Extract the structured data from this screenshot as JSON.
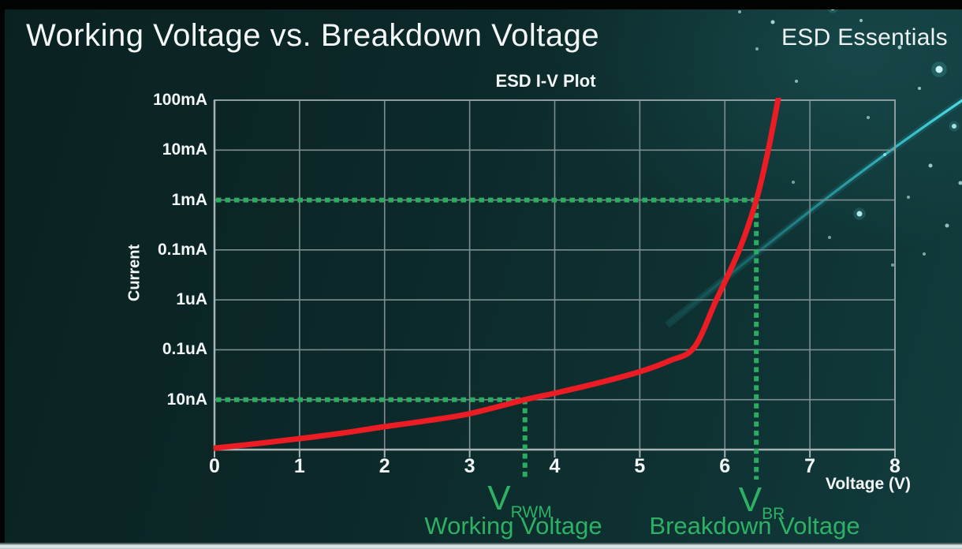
{
  "slide": {
    "title": "Working Voltage vs. Breakdown Voltage",
    "brand": "ESD Essentials"
  },
  "chart": {
    "title": "ESD I-V Plot",
    "x_axis_label": "Voltage (V)",
    "y_axis_label": "Current",
    "x_ticks": [
      "0",
      "1",
      "2",
      "3",
      "4",
      "5",
      "6",
      "7",
      "8"
    ],
    "y_ticks": [
      "100mA",
      "10mA",
      "1mA",
      "0.1mA",
      "1uA",
      "0.1uA",
      "10nA"
    ]
  },
  "annotations": {
    "working": {
      "symbol": "V",
      "subscript": "RWM",
      "caption": "Working Voltage"
    },
    "breakdown": {
      "symbol": "V",
      "subscript": "BR",
      "caption": "Breakdown Voltage"
    }
  },
  "colors": {
    "background_teal": "#0d2b2b",
    "curve_red": "#ec1c24",
    "guide_green": "#2bac60",
    "label_green": "#2db165",
    "grid_gray": "#7e8e90",
    "axis_gray": "#a7b3b4",
    "text_white": "#f2f6f6",
    "swoosh_cyan": "#3fd9e6"
  },
  "chart_data": {
    "type": "line",
    "title": "ESD I-V Plot",
    "xlabel": "Voltage (V)",
    "ylabel": "Current",
    "x_range": [
      0,
      8
    ],
    "x_ticks": [
      0,
      1,
      2,
      3,
      4,
      5,
      6,
      7,
      8
    ],
    "y_scale": "log-decades",
    "y_tick_labels_top_to_bottom": [
      "100mA",
      "10mA",
      "1mA",
      "0.1mA",
      "1uA",
      "0.1uA",
      "10nA"
    ],
    "y_decade_level_map": {
      "axis_bottom": 0,
      "10nA": 1,
      "0.1uA": 2,
      "1uA": 3,
      "0.1mA": 4,
      "1mA": 5,
      "10mA": 6,
      "100mA": 7
    },
    "grid": true,
    "legend": "none",
    "series": [
      {
        "name": "ESD device I-V curve",
        "color": "#ec1c24",
        "points_voltage_vs_decade_level": [
          [
            0,
            0.03
          ],
          [
            0.5,
            0.12
          ],
          [
            1,
            0.22
          ],
          [
            1.5,
            0.33
          ],
          [
            2,
            0.46
          ],
          [
            2.5,
            0.58
          ],
          [
            3,
            0.72
          ],
          [
            3.65,
            1.0
          ],
          [
            4,
            1.13
          ],
          [
            4.5,
            1.33
          ],
          [
            5,
            1.56
          ],
          [
            5.35,
            1.78
          ],
          [
            5.64,
            2.05
          ],
          [
            5.9,
            3.0
          ],
          [
            6.17,
            4.0
          ],
          [
            6.37,
            5.0
          ],
          [
            6.51,
            6.0
          ],
          [
            6.63,
            7.05
          ]
        ]
      }
    ],
    "markers": [
      {
        "name": "V_RWM",
        "label": "Working Voltage",
        "voltage": 3.65,
        "current": "10nA",
        "decade_level": 1
      },
      {
        "name": "V_BR",
        "label": "Breakdown Voltage",
        "voltage": 6.37,
        "current": "1mA",
        "decade_level": 5
      }
    ]
  }
}
